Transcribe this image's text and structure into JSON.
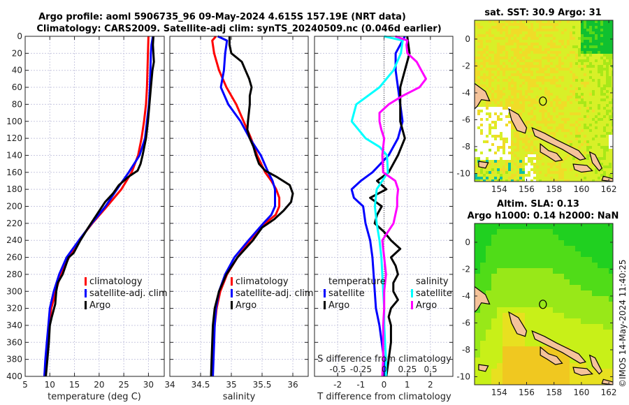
{
  "figure": {
    "title_line1": "Argo profile: aoml 5906735_96 09-May-2024 4.615S 157.19E (NRT data)",
    "title_line2": "Climatology: CARS2009. Satellite-adj clim: synTS_20240509.nc (0.046d earlier)",
    "timestamp": "©IMOS 14-May-2024 11:40:25"
  },
  "colors": {
    "climatology": "#ff0000",
    "satellite": "#0000ff",
    "argo": "#000000",
    "sal_satellite": "#00ffff",
    "sal_argo": "#ff00ff",
    "grid": "#c8c8e0",
    "land": "#f5c39a"
  },
  "chart_data": [
    {
      "type": "line",
      "name": "temperature-profile",
      "xlabel": "temperature (deg C)",
      "ylabel": "",
      "xlim": [
        5,
        33.2
      ],
      "ylim": [
        0,
        400
      ],
      "y_reversed": true,
      "xticks": [
        5,
        10,
        15,
        20,
        25,
        30
      ],
      "yticks": [
        0,
        20,
        40,
        60,
        80,
        100,
        120,
        140,
        160,
        180,
        200,
        220,
        240,
        260,
        280,
        300,
        320,
        340,
        360,
        380,
        400
      ],
      "grid": true,
      "legend": [
        "climatology",
        "satellite-adj. clim",
        "Argo"
      ],
      "legend_position": "lower-middle",
      "series": [
        {
          "name": "climatology",
          "depth": [
            0,
            20,
            40,
            60,
            80,
            100,
            120,
            140,
            160,
            180,
            200,
            220,
            240,
            260,
            280,
            300,
            320,
            340,
            360,
            380,
            400
          ],
          "values": [
            30.0,
            29.9,
            29.8,
            29.7,
            29.5,
            29.1,
            28.6,
            27.9,
            26.6,
            24.5,
            21.6,
            18.6,
            15.9,
            13.9,
            12.2,
            11.2,
            10.3,
            9.8,
            9.5,
            9.2,
            8.9
          ]
        },
        {
          "name": "satellite-adj. clim",
          "depth": [
            0,
            10,
            20,
            40,
            60,
            80,
            100,
            120,
            140,
            160,
            180,
            200,
            220,
            240,
            260,
            280,
            300,
            320,
            340,
            360,
            380,
            400
          ],
          "values": [
            30.9,
            30.6,
            30.5,
            30.4,
            30.3,
            30.1,
            29.7,
            29.3,
            28.2,
            26.0,
            23.6,
            21.3,
            18.5,
            15.9,
            13.4,
            11.9,
            10.8,
            10.0,
            9.7,
            9.4,
            9.1,
            8.9
          ]
        },
        {
          "name": "Argo",
          "depth": [
            0,
            10,
            20,
            30,
            40,
            60,
            80,
            100,
            120,
            140,
            150,
            158,
            165,
            175,
            185,
            195,
            210,
            225,
            240,
            255,
            260,
            280,
            290,
            300,
            315,
            330,
            340,
            360,
            380,
            400
          ],
          "values": [
            31.0,
            30.9,
            31.0,
            31.1,
            30.8,
            30.5,
            30.2,
            29.9,
            29.5,
            28.8,
            28.4,
            27.8,
            26.0,
            24.0,
            22.8,
            21.2,
            19.5,
            17.8,
            16.2,
            14.8,
            13.8,
            12.6,
            11.6,
            11.3,
            11.1,
            10.4,
            10.0,
            9.8,
            9.5,
            9.2
          ]
        }
      ]
    },
    {
      "type": "line",
      "name": "salinity-profile",
      "xlabel": "salinity",
      "xlim": [
        34,
        36.25
      ],
      "ylim": [
        0,
        400
      ],
      "y_reversed": true,
      "xticks": [
        34,
        34.5,
        35,
        35.5,
        36
      ],
      "grid": true,
      "legend": [
        "climatology",
        "satellite-adj. clim",
        "Argo"
      ],
      "legend_position": "lower-middle",
      "series": [
        {
          "name": "climatology",
          "depth": [
            0,
            5,
            20,
            40,
            60,
            80,
            100,
            120,
            140,
            160,
            170,
            180,
            190,
            200,
            210,
            220,
            240,
            260,
            280,
            300,
            320,
            340,
            360,
            380,
            400
          ],
          "values": [
            34.75,
            34.69,
            34.72,
            34.8,
            34.92,
            35.08,
            35.2,
            35.32,
            35.42,
            35.55,
            35.65,
            35.73,
            35.78,
            35.78,
            35.72,
            35.55,
            35.3,
            35.1,
            34.93,
            34.82,
            34.76,
            34.73,
            34.71,
            34.7,
            34.69
          ]
        },
        {
          "name": "satellite-adj. clim",
          "depth": [
            0,
            5,
            20,
            40,
            60,
            80,
            100,
            120,
            140,
            160,
            170,
            180,
            200,
            210,
            220,
            240,
            260,
            280,
            300,
            320,
            340,
            360,
            380,
            400
          ],
          "values": [
            34.78,
            34.93,
            34.9,
            34.88,
            34.83,
            34.95,
            35.15,
            35.3,
            35.48,
            35.6,
            35.67,
            35.71,
            35.71,
            35.65,
            35.52,
            35.28,
            35.05,
            34.9,
            34.8,
            34.75,
            34.73,
            34.72,
            34.71,
            34.7
          ]
        },
        {
          "name": "Argo",
          "depth": [
            0,
            10,
            20,
            30,
            40,
            50,
            60,
            70,
            80,
            100,
            110,
            120,
            130,
            140,
            150,
            158,
            165,
            175,
            185,
            195,
            205,
            215,
            225,
            240,
            260,
            280,
            300,
            320,
            340,
            360,
            380,
            400
          ],
          "values": [
            34.97,
            34.97,
            35.0,
            35.17,
            35.23,
            35.29,
            35.33,
            35.3,
            35.3,
            35.27,
            35.26,
            35.3,
            35.36,
            35.4,
            35.45,
            35.55,
            35.73,
            35.95,
            36.0,
            35.97,
            35.85,
            35.7,
            35.5,
            35.35,
            35.1,
            34.92,
            34.8,
            34.73,
            34.7,
            34.69,
            34.68,
            34.67
          ]
        }
      ]
    },
    {
      "type": "line",
      "name": "difference-profile",
      "xlabel": "T difference from climatology",
      "xlabel_top": "S difference from climatology",
      "xlim": [
        -3.0,
        2.97
      ],
      "slim": [
        -0.75,
        0.74
      ],
      "ylim": [
        0,
        400
      ],
      "y_reversed": true,
      "xticks": [
        -2,
        -1,
        0,
        1,
        2
      ],
      "sticks": [
        "-0.5",
        "-0.25",
        "0",
        "0.25",
        "0.5"
      ],
      "grid": true,
      "legend": {
        "temperature_title": "temperature",
        "salinity_title": "salinity",
        "entries": [
          "satellite",
          "Argo",
          "satellite",
          "Argo"
        ]
      },
      "legend_position": "lower",
      "series": [
        {
          "name": "temperature satellite",
          "axis": "T",
          "depth": [
            0,
            10,
            20,
            40,
            60,
            80,
            100,
            120,
            140,
            160,
            170,
            180,
            190,
            200,
            220,
            240,
            260,
            280,
            300,
            320,
            340,
            360,
            380,
            400
          ],
          "values": [
            0.9,
            0.7,
            0.5,
            0.5,
            0.6,
            0.7,
            0.8,
            0.6,
            0.2,
            -0.5,
            -1.0,
            -1.4,
            -1.3,
            -0.9,
            -0.8,
            -0.6,
            -0.5,
            -0.45,
            -0.4,
            -0.35,
            -0.2,
            -0.1,
            0.0,
            0.0
          ]
        },
        {
          "name": "temperature Argo",
          "axis": "T",
          "depth": [
            0,
            20,
            40,
            60,
            80,
            100,
            120,
            140,
            160,
            170,
            180,
            190,
            200,
            210,
            220,
            230,
            240,
            250,
            260,
            270,
            280,
            290,
            300,
            310,
            320,
            330,
            340,
            360,
            380,
            400
          ],
          "values": [
            1.0,
            1.1,
            0.9,
            0.7,
            0.7,
            0.7,
            0.9,
            0.6,
            0.2,
            -0.3,
            0.1,
            -0.6,
            -0.1,
            -0.3,
            -0.4,
            0.0,
            0.3,
            0.7,
            0.3,
            0.5,
            0.6,
            0.4,
            0.4,
            0.6,
            0.3,
            0.2,
            0.3,
            0.3,
            0.2,
            0.1
          ]
        },
        {
          "name": "salinity satellite",
          "axis": "S",
          "depth": [
            0,
            5,
            20,
            40,
            60,
            80,
            100,
            120,
            130,
            140,
            160,
            180,
            200,
            220,
            240,
            260,
            280,
            300,
            320,
            340,
            360,
            380,
            400
          ],
          "values": [
            0.0,
            0.2,
            0.18,
            0.1,
            -0.05,
            -0.3,
            -0.35,
            -0.2,
            -0.05,
            0.03,
            0.04,
            -0.08,
            -0.1,
            -0.08,
            -0.05,
            -0.03,
            -0.02,
            -0.01,
            0.0,
            0.0,
            0.01,
            0.02,
            0.02
          ]
        },
        {
          "name": "salinity Argo",
          "axis": "S",
          "depth": [
            0,
            5,
            10,
            20,
            30,
            40,
            50,
            60,
            70,
            80,
            90,
            100,
            110,
            120,
            140,
            160,
            170,
            180,
            190,
            200,
            220,
            240,
            260,
            280,
            300,
            320,
            340,
            360,
            380,
            400
          ],
          "values": [
            0.12,
            0.25,
            0.24,
            0.25,
            0.35,
            0.4,
            0.45,
            0.38,
            0.2,
            0.05,
            -0.05,
            -0.05,
            -0.03,
            0.0,
            -0.02,
            -0.01,
            0.12,
            0.15,
            0.14,
            0.14,
            0.1,
            -0.02,
            0.0,
            0.02,
            0.0,
            0.0,
            -0.01,
            -0.01,
            -0.01,
            -0.02
          ]
        }
      ]
    },
    {
      "type": "heatmap",
      "name": "sst-map",
      "title": "sat. SST: 30.9 Argo: 31",
      "xlim": [
        152.2,
        162.3
      ],
      "ylim": [
        -10.6,
        1.4
      ],
      "xticks": [
        154,
        156,
        158,
        160,
        162
      ],
      "yticks": [
        0,
        -2,
        -4,
        -6,
        -8,
        -10
      ],
      "marker": {
        "lon": 157.19,
        "lat": -4.615
      }
    },
    {
      "type": "heatmap",
      "name": "sla-map",
      "title_line1": "Altim. SLA: 0.13",
      "title_line2": "Argo h1000: 0.14 h2000: NaN",
      "xlim": [
        152.2,
        162.3
      ],
      "ylim": [
        -10.6,
        1.4
      ],
      "xticks": [
        154,
        156,
        158,
        160,
        162
      ],
      "yticks": [
        0,
        -2,
        -4,
        -6,
        -8,
        -10
      ],
      "marker": {
        "lon": 157.19,
        "lat": -4.615
      }
    }
  ]
}
